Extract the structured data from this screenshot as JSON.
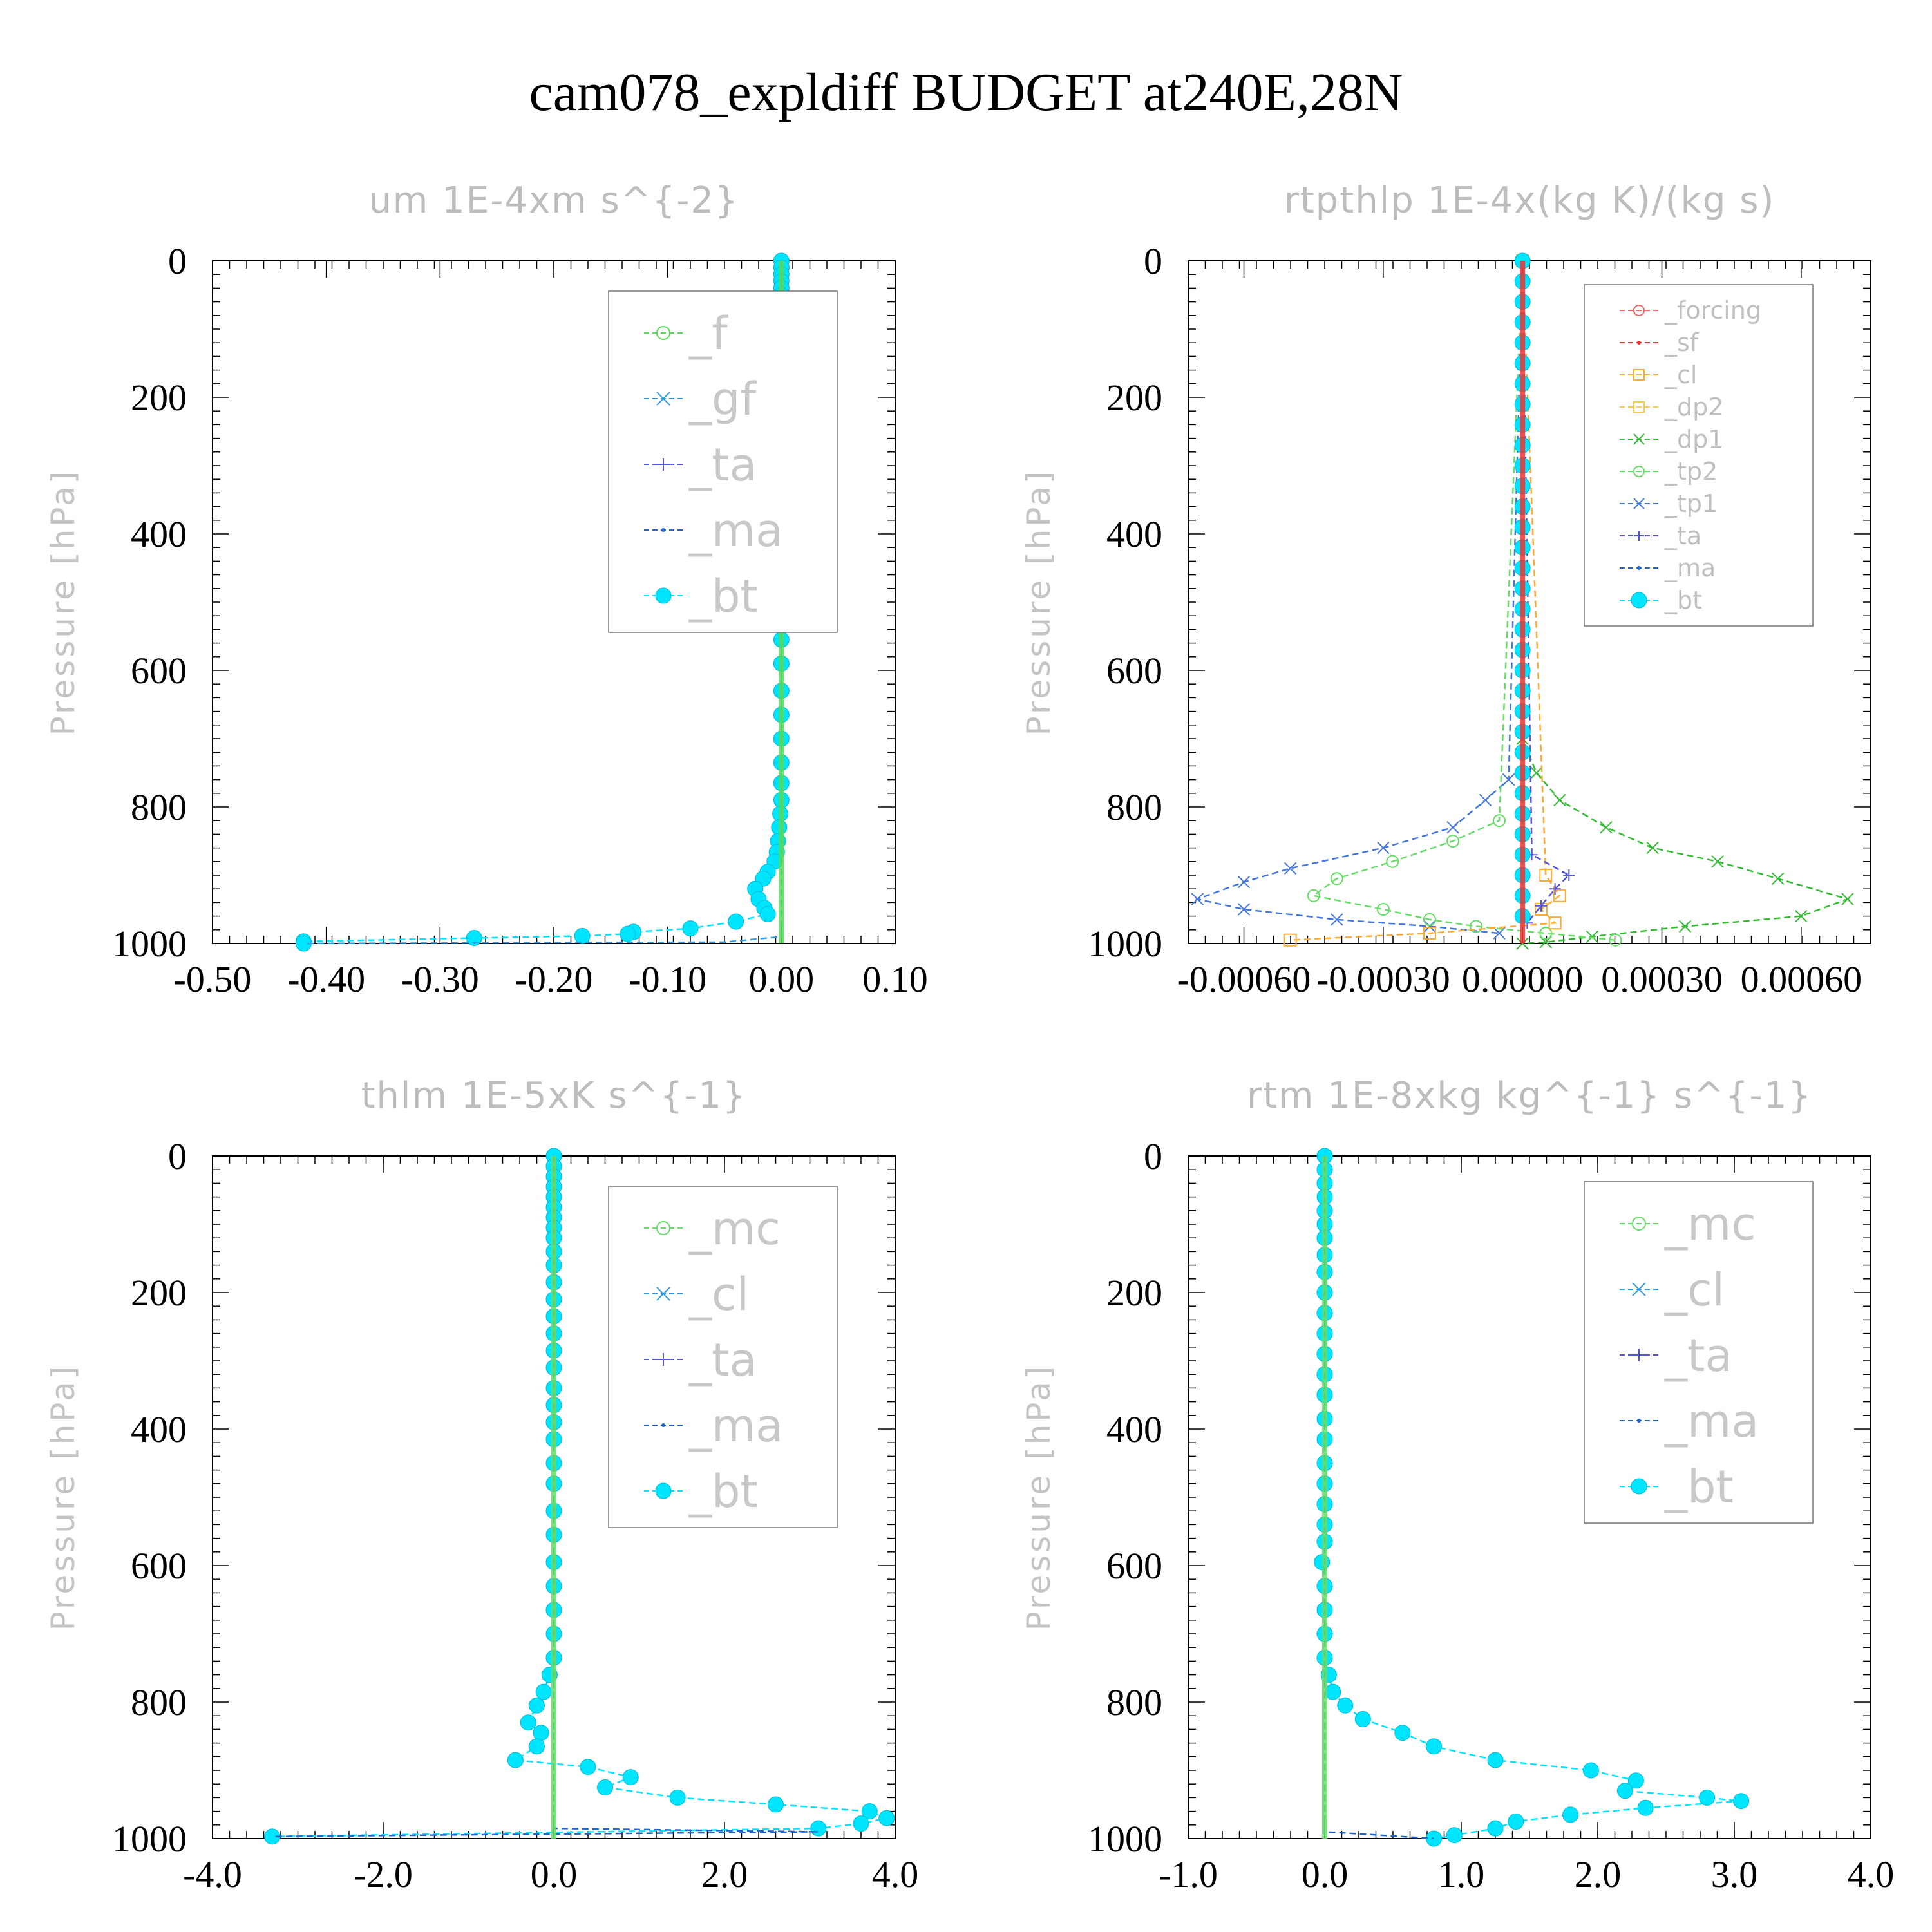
{
  "title": "cam078_expldiff  BUDGET at240E,28N",
  "colors": {
    "_f": "#55dd55",
    "_gf": "#3399dd",
    "_ta": "#5555dd",
    "_ma": "#2266cc",
    "_bt": "#00e5ff",
    "_forcing": "#ee6666",
    "_sf": "#ee3333",
    "_cl": "#ffaa33",
    "_dp2": "#ffcc44",
    "_dp1": "#33bb33",
    "_tp2": "#66dd66",
    "_tp1": "#4477dd",
    "_mc": "#66dd66",
    "_cl_rtm": "#3399dd"
  },
  "chart_data": [
    {
      "type": "line",
      "title": "um  1E-4xm s^{-2}",
      "ylabel": "Pressure [hPa]",
      "xlabel": "",
      "xlim": [
        -0.5,
        0.1
      ],
      "ylim": [
        1000,
        0
      ],
      "xticks": [
        "-0.50",
        "-0.40",
        "-0.30",
        "-0.20",
        "-0.10",
        "0.00",
        "0.10"
      ],
      "yticks": [
        "0",
        "200",
        "400",
        "600",
        "800",
        "1000"
      ],
      "legend": [
        "_f",
        "_gf",
        "_ta",
        "_ma",
        "_bt"
      ],
      "legend_style": "big",
      "series": [
        {
          "name": "_bt",
          "marker": "dot",
          "x": [
            0.0,
            0.0,
            0.0,
            0.0,
            0.0,
            0.0,
            0.0,
            0.0,
            0.0,
            0.0,
            0.0,
            -0.002,
            0.002,
            -0.002,
            -0.005,
            -0.003,
            -0.002,
            -0.004,
            0.001,
            0.002,
            0.002,
            0.002,
            0.001,
            0.001,
            0.0,
            0.0,
            0.0,
            0.0,
            0.0,
            0.0,
            0.0,
            0.0,
            0.0,
            -0.001,
            -0.002,
            -0.003,
            -0.004,
            -0.006,
            -0.012,
            -0.016,
            -0.023,
            -0.02,
            -0.015,
            -0.012,
            -0.04,
            -0.08,
            -0.13,
            -0.135,
            -0.175,
            -0.27,
            -0.42,
            -0.42
          ],
          "y": [
            0,
            10,
            20,
            30,
            40,
            50,
            60,
            70,
            80,
            90,
            105,
            115,
            170,
            190,
            210,
            240,
            270,
            295,
            320,
            350,
            390,
            420,
            450,
            480,
            515,
            555,
            590,
            630,
            665,
            700,
            735,
            765,
            790,
            810,
            830,
            850,
            866,
            880,
            895,
            905,
            920,
            935,
            948,
            957,
            968,
            978,
            983,
            986,
            989,
            992,
            997,
            1000
          ]
        },
        {
          "name": "_gf",
          "marker": "line",
          "x": [
            0,
            0,
            0,
            -0.05,
            -0.42
          ],
          "y": [
            0,
            600,
            990,
            998,
            1000
          ]
        },
        {
          "name": "_f",
          "marker": "line",
          "x": [
            0,
            0
          ],
          "y": [
            0,
            1000
          ]
        }
      ]
    },
    {
      "type": "line",
      "title": "rtpthlp  1E-4x(kg K)/(kg s)",
      "ylabel": "Pressure [hPa]",
      "xlabel": "",
      "xlim": [
        -0.00072,
        0.00075
      ],
      "ylim": [
        1000,
        0
      ],
      "xticks": [
        "-0.00060",
        "-0.00030",
        "0.00000",
        "0.00030",
        "0.00060"
      ],
      "xtick_values": [
        -0.0006,
        -0.0003,
        0.0,
        0.0003,
        0.0006
      ],
      "yticks": [
        "0",
        "200",
        "400",
        "600",
        "800",
        "1000"
      ],
      "legend": [
        "_forcing",
        "_sf",
        "_cl",
        "_dp2",
        "_dp1",
        "_tp2",
        "_tp1",
        "_ta",
        "_ma",
        "_bt"
      ],
      "legend_style": "small",
      "series": [
        {
          "name": "_dp1",
          "marker": "x",
          "x": [
            0.0,
            0.0,
            3e-05,
            8e-05,
            0.00018,
            0.00028,
            0.00042,
            0.00055,
            0.0007,
            0.0006,
            0.00035,
            0.00015,
            5e-05,
            0.0
          ],
          "y": [
            0,
            700,
            750,
            790,
            830,
            860,
            880,
            905,
            935,
            960,
            975,
            990,
            998,
            1000
          ]
        },
        {
          "name": "_tp1",
          "marker": "x",
          "x": [
            0.0,
            -3e-05,
            -8e-05,
            -0.00015,
            -0.0003,
            -0.0005,
            -0.0006,
            -0.0007,
            -0.0006,
            -0.0004,
            -0.0002,
            -5e-05
          ],
          "y": [
            0,
            760,
            790,
            830,
            860,
            890,
            910,
            935,
            950,
            965,
            975,
            985
          ]
        },
        {
          "name": "_tp2",
          "marker": "circle",
          "x": [
            0.0,
            -5e-05,
            -0.00015,
            -0.00028,
            -0.0004,
            -0.00045,
            -0.0003,
            -0.0002,
            -0.0001,
            5e-05,
            0.0002
          ],
          "y": [
            0,
            820,
            850,
            880,
            905,
            930,
            950,
            965,
            975,
            985,
            995
          ]
        },
        {
          "name": "_cl",
          "marker": "square",
          "x": [
            0.0,
            5e-05,
            8e-05,
            4e-05,
            7e-05,
            -0.0002,
            -0.0005
          ],
          "y": [
            0,
            900,
            930,
            950,
            970,
            985,
            995
          ]
        },
        {
          "name": "_ta",
          "marker": "plus",
          "x": [
            0.0,
            2e-05,
            0.0001,
            7e-05,
            4e-05,
            1e-05
          ],
          "y": [
            0,
            870,
            900,
            920,
            945,
            970
          ]
        },
        {
          "name": "_bt",
          "marker": "dot",
          "x": [
            0,
            0,
            0,
            0,
            0,
            0,
            0,
            0,
            0,
            0,
            0,
            0,
            0,
            0,
            0,
            0,
            0,
            0,
            0,
            0,
            0,
            0,
            0,
            0,
            0,
            0,
            0,
            0,
            0,
            0,
            0,
            0,
            0
          ],
          "y": [
            0,
            30,
            60,
            90,
            120,
            150,
            180,
            210,
            240,
            270,
            300,
            330,
            360,
            390,
            420,
            450,
            480,
            510,
            540,
            570,
            600,
            630,
            660,
            690,
            720,
            750,
            780,
            810,
            840,
            870,
            900,
            930,
            960
          ]
        },
        {
          "name": "_sf",
          "marker": "line",
          "x": [
            0,
            0
          ],
          "y": [
            0,
            1000
          ]
        }
      ]
    },
    {
      "type": "line",
      "title": "thlm  1E-5xK s^{-1}",
      "ylabel": "Pressure [hPa]",
      "xlabel": "",
      "xlim": [
        -4.0,
        4.0
      ],
      "ylim": [
        1000,
        0
      ],
      "xticks": [
        "-4.0",
        "-2.0",
        "0.0",
        "2.0",
        "4.0"
      ],
      "yticks": [
        "0",
        "200",
        "400",
        "600",
        "800",
        "1000"
      ],
      "legend": [
        "_mc",
        "_cl",
        "_ta",
        "_ma",
        "_bt"
      ],
      "legend_style": "big",
      "series": [
        {
          "name": "_bt",
          "marker": "dot",
          "x": [
            0,
            0,
            0,
            0,
            0,
            0,
            0,
            0,
            0,
            0,
            0,
            0,
            0,
            0,
            0,
            0,
            0,
            0,
            0,
            0,
            0,
            0,
            0,
            0,
            0,
            0,
            0,
            0,
            0,
            0,
            -0.05,
            -0.12,
            -0.2,
            -0.3,
            -0.15,
            -0.2,
            -0.45,
            0.4,
            0.9,
            0.6,
            1.45,
            2.6,
            3.7,
            3.9,
            3.6,
            3.1,
            -3.3
          ],
          "y": [
            0,
            15,
            30,
            45,
            60,
            75,
            90,
            105,
            120,
            140,
            160,
            185,
            210,
            235,
            260,
            285,
            310,
            340,
            365,
            390,
            415,
            450,
            480,
            520,
            555,
            595,
            630,
            665,
            700,
            735,
            760,
            785,
            805,
            830,
            845,
            865,
            885,
            895,
            910,
            925,
            940,
            950,
            960,
            970,
            978,
            985,
            997
          ]
        },
        {
          "name": "_ma",
          "marker": "line",
          "x": [
            0,
            0,
            3.1,
            -3.3
          ],
          "y": [
            0,
            985,
            990,
            997
          ]
        },
        {
          "name": "_mc",
          "marker": "line",
          "x": [
            0,
            0
          ],
          "y": [
            0,
            1000
          ]
        }
      ]
    },
    {
      "type": "line",
      "title": "rtm  1E-8xkg kg^{-1} s^{-1}",
      "ylabel": "Pressure [hPa]",
      "xlabel": "",
      "xlim": [
        -1.0,
        4.0
      ],
      "ylim": [
        1000,
        0
      ],
      "xticks": [
        "-1.0",
        "0.0",
        "1.0",
        "2.0",
        "3.0",
        "4.0"
      ],
      "yticks": [
        "0",
        "200",
        "400",
        "600",
        "800",
        "1000"
      ],
      "legend": [
        "_mc",
        "_cl",
        "_ta",
        "_ma",
        "_bt"
      ],
      "legend_style": "big",
      "series": [
        {
          "name": "_bt",
          "marker": "dot",
          "x": [
            0,
            0,
            0,
            0,
            0,
            0,
            0,
            0,
            0,
            0,
            0,
            0,
            0,
            0,
            0,
            0,
            0,
            0,
            0,
            0,
            0,
            0,
            -0.02,
            0.0,
            0.0,
            0.0,
            0.0,
            0.03,
            0.06,
            0.15,
            0.28,
            0.57,
            0.8,
            1.25,
            1.95,
            2.28,
            2.2,
            2.8,
            3.05,
            2.35,
            1.8,
            1.4,
            1.25,
            0.95,
            0.8
          ],
          "y": [
            0,
            20,
            40,
            60,
            80,
            100,
            120,
            145,
            170,
            200,
            230,
            260,
            290,
            320,
            350,
            385,
            415,
            450,
            480,
            510,
            540,
            565,
            595,
            630,
            665,
            700,
            735,
            760,
            785,
            805,
            825,
            845,
            865,
            885,
            900,
            915,
            930,
            940,
            945,
            955,
            965,
            975,
            985,
            995,
            1000
          ]
        },
        {
          "name": "_ma",
          "marker": "line",
          "x": [
            0,
            0,
            0.8
          ],
          "y": [
            0,
            990,
            1000
          ]
        },
        {
          "name": "_mc",
          "marker": "line",
          "x": [
            0,
            0
          ],
          "y": [
            0,
            1000
          ]
        }
      ]
    }
  ]
}
